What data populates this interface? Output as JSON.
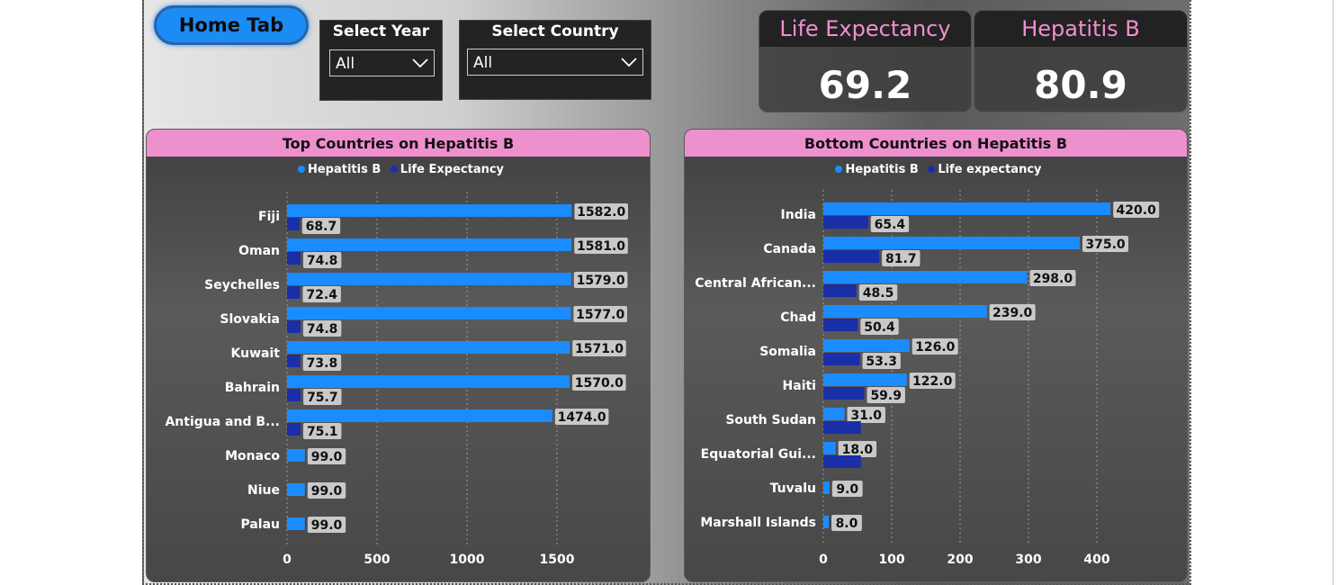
{
  "header": {
    "home_tab_label": "Home Tab",
    "year_slicer": {
      "title": "Select Year",
      "value": "All"
    },
    "country_slicer": {
      "title": "Select Country",
      "value": "All"
    }
  },
  "kpis": [
    {
      "label": "Life Expectancy",
      "value": "69.2"
    },
    {
      "label": "Hepatitis B",
      "value": "80.9"
    }
  ],
  "colors": {
    "hepatitis": "#1a8cff",
    "life": "#1a2ea8",
    "title_band": "#ee8fce",
    "kpi_label": "#f08fd0"
  },
  "chart_data": [
    {
      "type": "bar",
      "orientation": "horizontal",
      "title": "Top Countries on Hepatitis B",
      "legend": [
        "Hepatitis B",
        "Life Expectancy"
      ],
      "legend_position": "top-center",
      "categories": [
        "Fiji",
        "Oman",
        "Seychelles",
        "Slovakia",
        "Kuwait",
        "Bahrain",
        "Antigua and B...",
        "Monaco",
        "Niue",
        "Palau"
      ],
      "series": [
        {
          "name": "Hepatitis B",
          "values": [
            1582.0,
            1581.0,
            1579.0,
            1577.0,
            1571.0,
            1570.0,
            1474.0,
            99.0,
            99.0,
            99.0
          ]
        },
        {
          "name": "Life Expectancy",
          "values": [
            68.7,
            74.8,
            72.4,
            74.8,
            73.8,
            75.7,
            75.1,
            null,
            null,
            null
          ]
        }
      ],
      "labels": {
        "Hepatitis B": [
          "1582.0",
          "1581.0",
          "1579.0",
          "1577.0",
          "1571.0",
          "1570.0",
          "1474.0",
          "99.0",
          "99.0",
          "99.0"
        ],
        "Life Expectancy": [
          "68.7",
          "74.8",
          "72.4",
          "74.8",
          "73.8",
          "75.7",
          "75.1",
          "",
          "",
          ""
        ]
      },
      "x_ticks": [
        0,
        500,
        1000,
        1500
      ],
      "xlim": [
        0,
        1900
      ],
      "grid": "vertical-dotted"
    },
    {
      "type": "bar",
      "orientation": "horizontal",
      "title": "Bottom Countries on Hepatitis B",
      "legend": [
        "Hepatitis B",
        "Life expectancy"
      ],
      "legend_position": "top-center",
      "categories": [
        "India",
        "Canada",
        "Central African...",
        "Chad",
        "Somalia",
        "Haiti",
        "South Sudan",
        "Equatorial Gui...",
        "Tuvalu",
        "Marshall Islands"
      ],
      "series": [
        {
          "name": "Hepatitis B",
          "values": [
            420.0,
            375.0,
            298.0,
            239.0,
            126.0,
            122.0,
            31.0,
            18.0,
            9.0,
            8.0
          ]
        },
        {
          "name": "Life expectancy",
          "values": [
            65.4,
            81.7,
            48.5,
            50.4,
            53.3,
            59.9,
            55.0,
            55.0,
            null,
            null
          ]
        }
      ],
      "labels": {
        "Hepatitis B": [
          "420.0",
          "375.0",
          "298.0",
          "239.0",
          "126.0",
          "122.0",
          "31.0",
          "18.0",
          "9.0",
          "8.0"
        ],
        "Life expectancy": [
          "65.4",
          "81.7",
          "48.5",
          "50.4",
          "53.3",
          "59.9",
          "",
          "",
          "",
          ""
        ]
      },
      "x_ticks": [
        0,
        100,
        200,
        300,
        400
      ],
      "xlim": [
        0,
        500
      ],
      "grid": "vertical-dotted"
    }
  ]
}
